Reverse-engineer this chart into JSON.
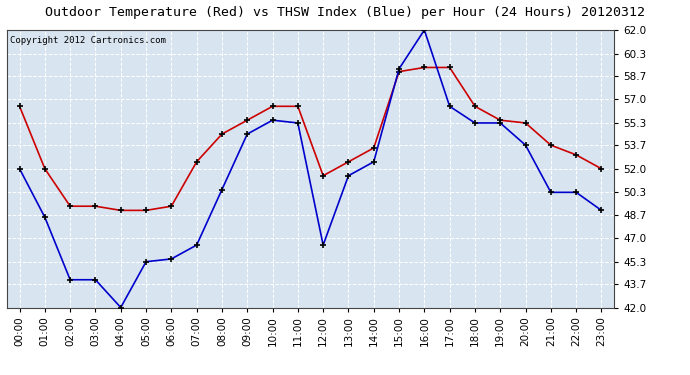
{
  "title": "Outdoor Temperature (Red) vs THSW Index (Blue) per Hour (24 Hours) 20120312",
  "copyright": "Copyright 2012 Cartronics.com",
  "hours": [
    "00:00",
    "01:00",
    "02:00",
    "03:00",
    "04:00",
    "05:00",
    "06:00",
    "07:00",
    "08:00",
    "09:00",
    "10:00",
    "11:00",
    "12:00",
    "13:00",
    "14:00",
    "15:00",
    "16:00",
    "17:00",
    "18:00",
    "19:00",
    "20:00",
    "21:00",
    "22:00",
    "23:00"
  ],
  "red_temp": [
    56.5,
    52.0,
    49.3,
    49.3,
    49.0,
    49.0,
    49.3,
    52.5,
    54.5,
    55.5,
    56.5,
    56.5,
    51.5,
    52.5,
    53.5,
    59.0,
    59.3,
    59.3,
    56.5,
    55.5,
    55.3,
    53.7,
    53.0,
    52.0
  ],
  "blue_thsw": [
    52.0,
    48.5,
    44.0,
    44.0,
    42.0,
    45.3,
    45.5,
    46.5,
    50.5,
    54.5,
    55.5,
    55.3,
    46.5,
    51.5,
    52.5,
    59.2,
    62.0,
    56.5,
    55.3,
    55.3,
    53.7,
    50.3,
    50.3,
    49.0
  ],
  "ylim_min": 42.0,
  "ylim_max": 62.0,
  "yticks": [
    42.0,
    43.7,
    45.3,
    47.0,
    48.7,
    50.3,
    52.0,
    53.7,
    55.3,
    57.0,
    58.7,
    60.3,
    62.0
  ],
  "red_color": "#cc0000",
  "blue_color": "#0000cc",
  "bg_color": "#ffffff",
  "plot_bg_color": "#d8e4f0",
  "grid_color": "#ffffff",
  "title_fontsize": 9.5,
  "copyright_fontsize": 6.5,
  "tick_fontsize": 7.5
}
